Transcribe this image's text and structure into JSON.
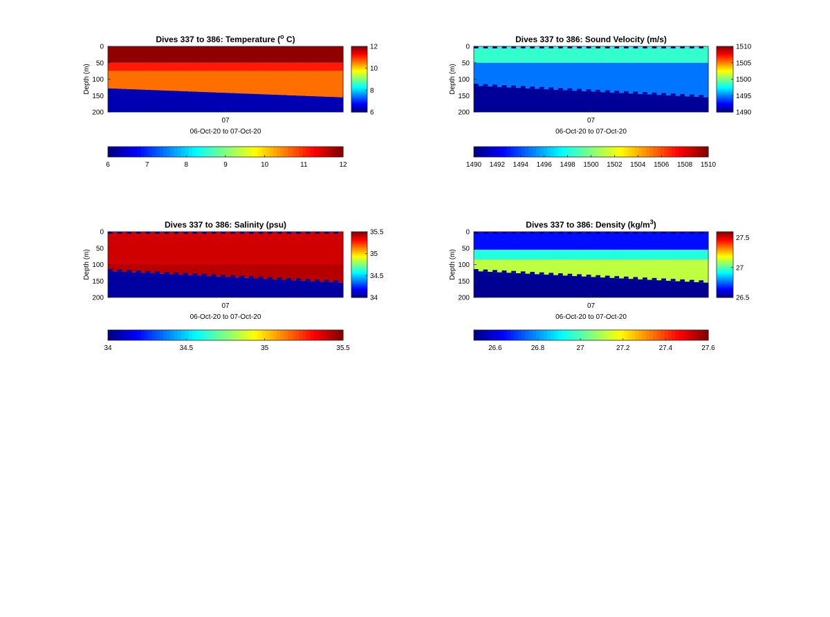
{
  "chart_data": [
    {
      "id": "temperature",
      "type": "heatmap",
      "title": "Dives 337 to 386: Temperature (",
      "title_sup": "o",
      "title_tail": " C)",
      "ylabel": "Depth (m)",
      "xtick": "07",
      "xlabel": "06-Oct-20 to 07-Oct-20",
      "ylim": [
        0,
        200
      ],
      "yticks": [
        "0",
        "50",
        "100",
        "150",
        "200"
      ],
      "clim": [
        6,
        12
      ],
      "side_colorbar_ticks": [
        {
          "value": 12,
          "label": "12"
        },
        {
          "value": 10,
          "label": "10"
        },
        {
          "value": 8,
          "label": "8"
        },
        {
          "value": 6,
          "label": "6"
        }
      ],
      "bottom_colorbar_ticks": [
        {
          "value": 6,
          "label": "6"
        },
        {
          "value": 7,
          "label": "7"
        },
        {
          "value": 8,
          "label": "8"
        },
        {
          "value": 9,
          "label": "9"
        },
        {
          "value": 10,
          "label": "10"
        },
        {
          "value": 11,
          "label": "11"
        },
        {
          "value": 12,
          "label": "12"
        }
      ],
      "bottom_mode": "flat",
      "bottom_depth": [
        128,
        155
      ],
      "n_dives": 50,
      "layers": [
        {
          "depth_top": 0,
          "depth_bottom": 50,
          "value": 11.9
        },
        {
          "depth_top": 50,
          "depth_bottom": 75,
          "value": 11.1
        },
        {
          "depth_top": 75,
          "depth_bottom": 200,
          "value": 10.6
        }
      ],
      "below_value": 6.3
    },
    {
      "id": "sound_velocity",
      "type": "heatmap",
      "title": "Dives 337 to 386: Sound Velocity (m/s)",
      "ylabel": "Depth (m)",
      "xtick": "07",
      "xlabel": "06-Oct-20 to 07-Oct-20",
      "ylim": [
        0,
        200
      ],
      "yticks": [
        "0",
        "50",
        "100",
        "150",
        "200"
      ],
      "clim": [
        1490,
        1510
      ],
      "side_colorbar_ticks": [
        {
          "value": 1510,
          "label": "1510"
        },
        {
          "value": 1505,
          "label": "1505"
        },
        {
          "value": 1500,
          "label": "1500"
        },
        {
          "value": 1495,
          "label": "1495"
        },
        {
          "value": 1490,
          "label": "1490"
        }
      ],
      "bottom_colorbar_ticks": [
        {
          "value": 1490,
          "label": "1490"
        },
        {
          "value": 1492,
          "label": "1492"
        },
        {
          "value": 1494,
          "label": "1494"
        },
        {
          "value": 1496,
          "label": "1496"
        },
        {
          "value": 1498,
          "label": "1498"
        },
        {
          "value": 1500,
          "label": "1500"
        },
        {
          "value": 1502,
          "label": "1502"
        },
        {
          "value": 1504,
          "label": "1504"
        },
        {
          "value": 1506,
          "label": "1506"
        },
        {
          "value": 1508,
          "label": "1508"
        },
        {
          "value": 1510,
          "label": "1510"
        }
      ],
      "bottom_mode": "stepped",
      "bottom_depth": [
        120,
        155
      ],
      "n_dives": 50,
      "layers": [
        {
          "depth_top": 0,
          "depth_bottom": 50,
          "value": 1498.5
        },
        {
          "depth_top": 50,
          "depth_bottom": 200,
          "value": 1494.8
        }
      ],
      "below_value": 1490.5
    },
    {
      "id": "salinity",
      "type": "heatmap",
      "title": "Dives 337 to 386: Salinity (psu)",
      "ylabel": "Depth (m)",
      "xtick": "07",
      "xlabel": "06-Oct-20 to 07-Oct-20",
      "ylim": [
        0,
        200
      ],
      "yticks": [
        "0",
        "50",
        "100",
        "150",
        "200"
      ],
      "clim": [
        34,
        35.5
      ],
      "side_colorbar_ticks": [
        {
          "value": 35.5,
          "label": "35.5"
        },
        {
          "value": 35,
          "label": "35"
        },
        {
          "value": 34.5,
          "label": "34.5"
        },
        {
          "value": 34,
          "label": "34"
        }
      ],
      "bottom_colorbar_ticks": [
        {
          "value": 34,
          "label": "34"
        },
        {
          "value": 34.5,
          "label": "34.5"
        },
        {
          "value": 35,
          "label": "35"
        },
        {
          "value": 35.5,
          "label": "35.5"
        }
      ],
      "bottom_mode": "stepped",
      "bottom_depth": [
        120,
        155
      ],
      "n_dives": 50,
      "layers": [
        {
          "depth_top": 0,
          "depth_bottom": 100,
          "value": 35.38
        },
        {
          "depth_top": 100,
          "depth_bottom": 200,
          "value": 35.42
        }
      ],
      "below_value": 34.05
    },
    {
      "id": "density",
      "type": "heatmap",
      "title": "Dives 337 to 386: Density (kg/m",
      "title_sup": "3",
      "title_tail": ")",
      "ylabel": "Depth (m)",
      "xtick": "07",
      "xlabel": "06-Oct-20 to 07-Oct-20",
      "ylim": [
        0,
        200
      ],
      "yticks": [
        "0",
        "50",
        "100",
        "150",
        "200"
      ],
      "clim": [
        26.5,
        27.6
      ],
      "side_colorbar_ticks": [
        {
          "value": 27.5,
          "label": "27.5"
        },
        {
          "value": 27,
          "label": "27"
        },
        {
          "value": 26.5,
          "label": "26.5"
        }
      ],
      "bottom_colorbar_ticks": [
        {
          "value": 26.6,
          "label": "26.6"
        },
        {
          "value": 26.8,
          "label": "26.8"
        },
        {
          "value": 27,
          "label": "27"
        },
        {
          "value": 27.2,
          "label": "27.2"
        },
        {
          "value": 27.4,
          "label": "27.4"
        },
        {
          "value": 27.6,
          "label": "27.6"
        }
      ],
      "bottom_mode": "stepped",
      "bottom_depth": [
        120,
        155
      ],
      "n_dives": 50,
      "layers": [
        {
          "depth_top": 0,
          "depth_bottom": 55,
          "value": 26.65
        },
        {
          "depth_top": 55,
          "depth_bottom": 85,
          "value": 26.95
        },
        {
          "depth_top": 85,
          "depth_bottom": 200,
          "value": 27.12
        }
      ],
      "below_value": 26.52
    }
  ]
}
